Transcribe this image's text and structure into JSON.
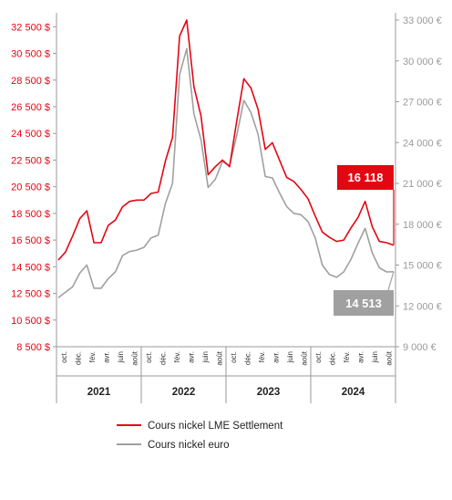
{
  "chart_data": {
    "type": "line",
    "left_axis": {
      "ticks": [
        8500,
        10500,
        12500,
        14500,
        16500,
        18500,
        20500,
        22500,
        24500,
        26500,
        28500,
        30500,
        32500
      ],
      "unit": "$",
      "ylim": [
        8500,
        33000
      ]
    },
    "right_axis": {
      "ticks": [
        9000,
        12000,
        15000,
        18000,
        21000,
        24000,
        27000,
        30000,
        33000
      ],
      "unit": "€",
      "ylim": [
        9000,
        33000
      ]
    },
    "month_ticks": [
      "oct.",
      "déc.",
      "fév.",
      "avr.",
      "juin",
      "août",
      "oct.",
      "déc.",
      "fév.",
      "avr.",
      "juin",
      "août",
      "oct.",
      "déc.",
      "fév.",
      "avr.",
      "juin",
      "août",
      "oct.",
      "déc.",
      "fév.",
      "avr.",
      "juin",
      "août"
    ],
    "years": [
      "2021",
      "2022",
      "2023",
      "2024"
    ],
    "months": [
      "2020-09",
      "2020-10",
      "2020-11",
      "2020-12",
      "2021-01",
      "2021-02",
      "2021-03",
      "2021-04",
      "2021-05",
      "2021-06",
      "2021-07",
      "2021-08",
      "2021-09",
      "2021-10",
      "2021-11",
      "2021-12",
      "2022-01",
      "2022-02",
      "2022-03",
      "2022-04",
      "2022-05",
      "2022-06",
      "2022-07",
      "2022-08",
      "2022-09",
      "2022-10",
      "2022-11",
      "2022-12",
      "2023-01",
      "2023-02",
      "2023-03",
      "2023-04",
      "2023-05",
      "2023-06",
      "2023-07",
      "2023-08",
      "2023-09",
      "2023-10",
      "2023-11",
      "2023-12",
      "2024-01",
      "2024-02",
      "2024-03",
      "2024-04",
      "2024-05",
      "2024-06",
      "2024-07",
      "2024-08"
    ],
    "series": [
      {
        "name": "Cours nickel LME Settlement",
        "axis": "left",
        "color": "#e30613",
        "values": [
          15000,
          15600,
          16800,
          18100,
          18700,
          16300,
          16300,
          17600,
          18000,
          19000,
          19400,
          19500,
          19500,
          20000,
          20100,
          22400,
          24200,
          31800,
          33000,
          28000,
          25800,
          21400,
          22000,
          22500,
          22000,
          25400,
          28600,
          27900,
          26300,
          23300,
          23800,
          22500,
          21200,
          20900,
          20300,
          19600,
          18300,
          17100,
          16700,
          16400,
          16500,
          17400,
          18200,
          19400,
          17500,
          16400,
          16300,
          16118
        ]
      },
      {
        "name": "Cours nickel euro",
        "axis": "right",
        "color": "#a0a0a0",
        "values": [
          12600,
          13000,
          13400,
          14400,
          15000,
          13300,
          13300,
          14000,
          14500,
          15700,
          16000,
          16100,
          16300,
          17000,
          17200,
          19500,
          21000,
          29000,
          30900,
          26100,
          24200,
          20700,
          21300,
          22600,
          22300,
          24500,
          27100,
          26200,
          24600,
          21500,
          21400,
          20300,
          19300,
          18800,
          18700,
          18200,
          17000,
          15000,
          14300,
          14100,
          14500,
          15400,
          16600,
          17700,
          15900,
          14800,
          14500,
          14513
        ]
      }
    ],
    "callouts": {
      "lme_last": "16 118",
      "euro_last": "14 513"
    }
  }
}
